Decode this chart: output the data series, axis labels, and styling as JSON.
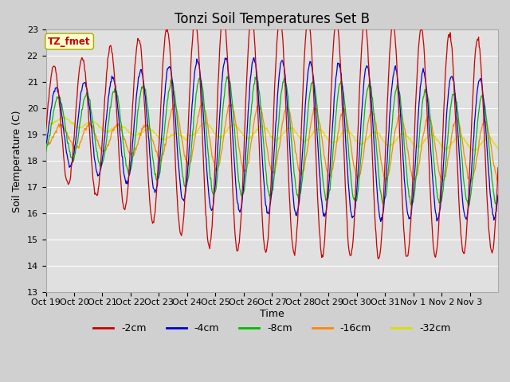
{
  "title": "Tonzi Soil Temperatures Set B",
  "xlabel": "Time",
  "ylabel": "Soil Temperature (C)",
  "ylim": [
    13.0,
    23.0
  ],
  "yticks": [
    13.0,
    14.0,
    15.0,
    16.0,
    17.0,
    18.0,
    19.0,
    20.0,
    21.0,
    22.0,
    23.0
  ],
  "xtick_labels": [
    "Oct 19",
    "Oct 20",
    "Oct 21",
    "Oct 22",
    "Oct 23",
    "Oct 24",
    "Oct 25",
    "Oct 26",
    "Oct 27",
    "Oct 28",
    "Oct 29",
    "Oct 30",
    "Oct 31",
    "Nov 1",
    "Nov 2",
    "Nov 3"
  ],
  "colors": {
    "-2cm": "#cc0000",
    "-4cm": "#0000dd",
    "-8cm": "#00bb00",
    "-16cm": "#ff8800",
    "-32cm": "#dddd00"
  },
  "annotation_text": "TZ_fmet",
  "annotation_color": "#cc0000",
  "annotation_bg": "#ffffcc",
  "annotation_edge": "#aaaa00",
  "fig_bg": "#d0d0d0",
  "plot_bg": "#e0e0e0",
  "grid_color": "#ffffff",
  "title_fontsize": 12,
  "axis_label_fontsize": 9,
  "tick_fontsize": 8,
  "days": 16
}
